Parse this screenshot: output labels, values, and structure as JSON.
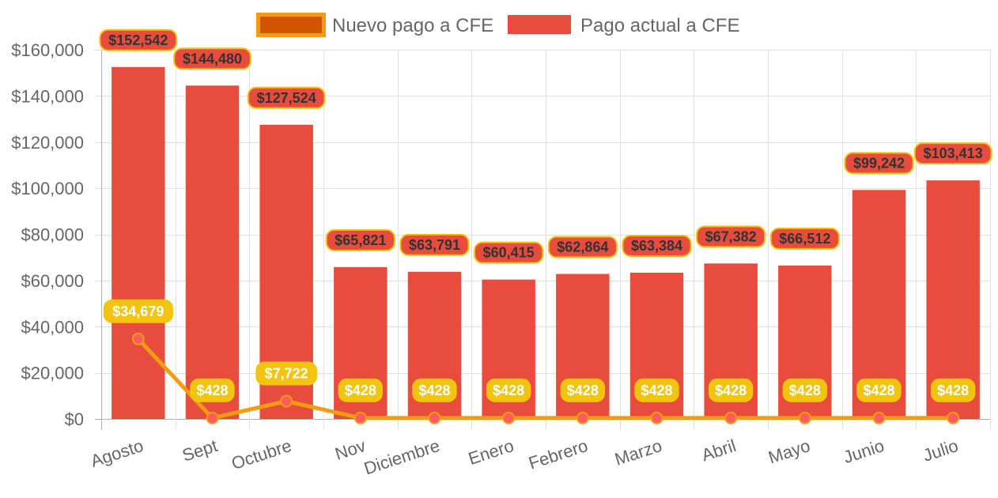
{
  "chart_data": {
    "type": "bar",
    "categories": [
      "Agosto",
      "Sept",
      "Octubre",
      "Nov",
      "Diciembre",
      "Enero",
      "Febrero",
      "Marzo",
      "Abril",
      "Mayo",
      "Junio",
      "Julio"
    ],
    "series": [
      {
        "name": "Nuevo pago a CFE",
        "type": "line",
        "values": [
          34679,
          428,
          7722,
          428,
          428,
          428,
          428,
          428,
          428,
          428,
          428,
          428
        ],
        "labels": [
          "$34,679",
          "$428",
          "$7,722",
          "$428",
          "$428",
          "$428",
          "$428",
          "$428",
          "$428",
          "$428",
          "$428",
          "$428"
        ],
        "color": "#f39c12",
        "point_color": "#ff5d5d",
        "label_bg": "#f1c40f"
      },
      {
        "name": "Pago actual a CFE",
        "type": "bar",
        "values": [
          152542,
          144480,
          127524,
          65821,
          63791,
          60415,
          62864,
          63384,
          67382,
          66512,
          99242,
          103413
        ],
        "labels": [
          "$152,542",
          "$144,480",
          "$127,524",
          "$65,821",
          "$63,791",
          "$60,415",
          "$62,864",
          "$63,384",
          "$67,382",
          "$66,512",
          "$99,242",
          "$103,413"
        ],
        "color": "#e74c3c",
        "label_border": "#f1c40f"
      }
    ],
    "y_ticks": [
      "$0",
      "$20,000",
      "$40,000",
      "$60,000",
      "$80,000",
      "$100,000",
      "$120,000",
      "$140,000",
      "$160,000"
    ],
    "ylim": [
      0,
      160000
    ],
    "grid": true,
    "legend_position": "top"
  }
}
